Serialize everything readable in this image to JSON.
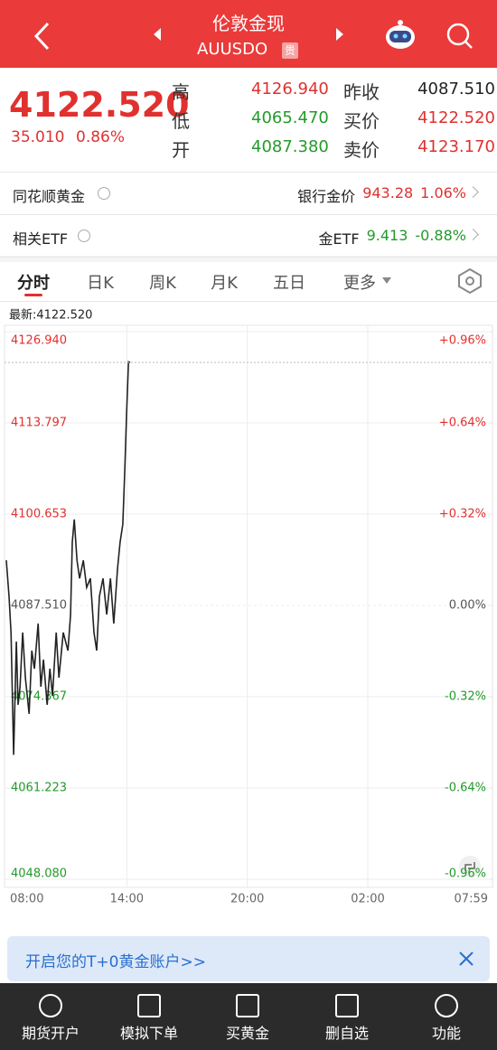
{
  "header": {
    "title": "伦敦金现",
    "code": "AUUSDO",
    "badge": "贵"
  },
  "quote": {
    "price": "4122.520",
    "change": "35.010",
    "change_pct": "0.86%",
    "stats_left": [
      {
        "label": "高",
        "value": "4126.940"
      },
      {
        "label": "低",
        "value": "4065.470"
      },
      {
        "label": "开",
        "value": "4087.380"
      }
    ],
    "stats_right": [
      {
        "label": "昨收",
        "value": "4087.510"
      },
      {
        "label": "买价",
        "value": "4122.520"
      },
      {
        "label": "卖价",
        "value": "4123.170"
      }
    ]
  },
  "rows": [
    {
      "left": "同花顺黄金",
      "right_label": "银行金价",
      "right_value": "943.28",
      "right_pct": "1.06%"
    },
    {
      "left": "相关ETF",
      "right_label": "金ETF",
      "right_value": "9.413",
      "right_pct": "-0.88%"
    }
  ],
  "tabs": [
    "分时",
    "日K",
    "周K",
    "月K",
    "五日",
    "更多"
  ],
  "chart_data": {
    "type": "line",
    "latest_label": "最新:4122.520",
    "x": [
      0,
      8,
      14,
      22,
      30,
      35,
      41,
      49,
      57,
      68,
      76,
      84,
      95,
      103,
      111,
      122,
      130,
      138,
      149,
      157,
      170,
      184,
      192,
      197,
      203,
      211,
      219,
      230,
      240,
      251,
      262,
      270,
      278,
      289,
      300,
      311,
      321,
      332,
      340,
      348,
      354,
      359,
      365,
      370
    ],
    "values": [
      4094.0,
      4088.8,
      4083.6,
      4066.0,
      4082.3,
      4073.2,
      4075.8,
      4083.6,
      4077.1,
      4071.9,
      4081.0,
      4078.4,
      4084.9,
      4075.8,
      4079.7,
      4073.2,
      4078.4,
      4074.5,
      4083.6,
      4077.1,
      4083.6,
      4081.0,
      4086.2,
      4096.6,
      4099.9,
      4094.0,
      4091.4,
      4094.0,
      4090.1,
      4091.4,
      4083.6,
      4081.0,
      4088.8,
      4091.4,
      4086.2,
      4091.4,
      4084.9,
      4092.7,
      4096.6,
      4099.2,
      4107.0,
      4114.8,
      4122.6,
      4122.5
    ],
    "color": "#222222",
    "xlim": [
      0,
      1439
    ],
    "xticks": [
      {
        "value": 0,
        "label": "08:00"
      },
      {
        "value": 360,
        "label": "14:00"
      },
      {
        "value": 720,
        "label": "20:00"
      },
      {
        "value": 1080,
        "label": "02:00"
      },
      {
        "value": 1439,
        "label": "07:59"
      }
    ],
    "ylim": [
      4048.08,
      4126.94
    ],
    "yticks": [
      {
        "value": 4126.94,
        "label": "4126.940"
      },
      {
        "value": 4113.797,
        "label": "4113.797"
      },
      {
        "value": 4100.653,
        "label": "4100.653"
      },
      {
        "value": 4087.51,
        "label": "4087.510"
      },
      {
        "value": 4074.367,
        "label": "4074.367"
      },
      {
        "value": 4061.223,
        "label": "4061.223"
      },
      {
        "value": 4048.08,
        "label": "4048.080"
      }
    ],
    "y2lim": [
      -0.96,
      0.96
    ],
    "y2ticks": [
      {
        "value": 0.96,
        "label": "+0.96%"
      },
      {
        "value": 0.64,
        "label": "+0.64%"
      },
      {
        "value": 0.32,
        "label": "+0.32%"
      },
      {
        "value": 0,
        "label": "0.00%"
      },
      {
        "value": -0.32,
        "label": "-0.32%"
      },
      {
        "value": -0.64,
        "label": "-0.64%"
      },
      {
        "value": -0.96,
        "label": "-0.96%"
      }
    ],
    "grid": true
  },
  "banner": {
    "text": "开启您的T+0黄金账户>>"
  },
  "nav": [
    "期货开户",
    "模拟下单",
    "买黄金",
    "删自选",
    "功能"
  ]
}
